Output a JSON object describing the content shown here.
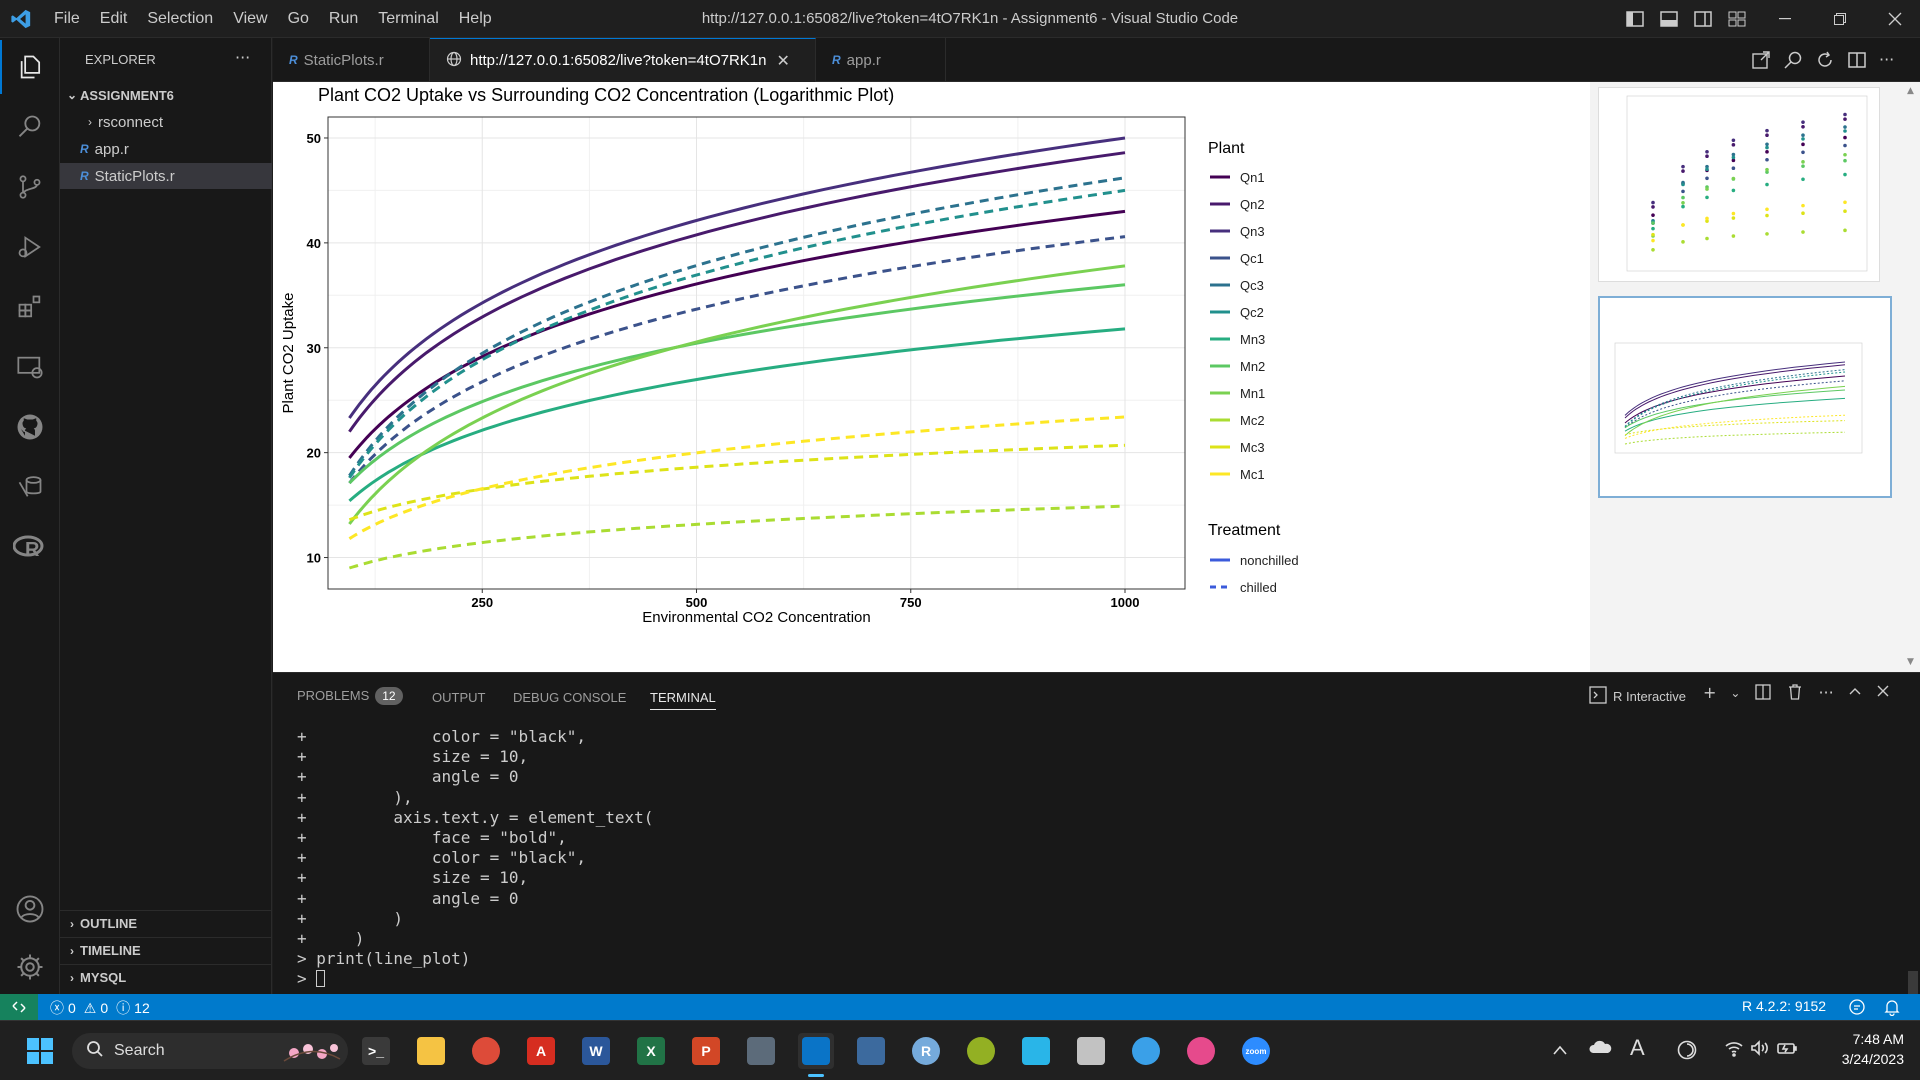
{
  "titlebar": {
    "menu": [
      "File",
      "Edit",
      "Selection",
      "View",
      "Go",
      "Run",
      "Terminal",
      "Help"
    ],
    "title": "http://127.0.0.1:65082/live?token=4tO7RK1n - Assignment6 - Visual Studio Code"
  },
  "activity": [
    "explorer-icon",
    "search-icon",
    "source-control-icon",
    "run-debug-icon",
    "extensions-icon",
    "remote-explorer-icon",
    "github-icon",
    "database-icon",
    "r-icon",
    "accounts-icon",
    "settings-gear-icon"
  ],
  "sidebar": {
    "header": "EXPLORER",
    "workspace": "ASSIGNMENT6",
    "items": [
      {
        "label": "rsconnect",
        "type": "folder"
      },
      {
        "label": "app.r",
        "type": "file"
      },
      {
        "label": "StaticPlots.r",
        "type": "file",
        "selected": true
      }
    ],
    "sections": [
      "OUTLINE",
      "TIMELINE",
      "MYSQL"
    ]
  },
  "tabs": [
    {
      "label": "StaticPlots.r",
      "active": false
    },
    {
      "label": "http://127.0.0.1:65082/live?token=4tO7RK1n",
      "active": true
    },
    {
      "label": "app.r",
      "active": false
    }
  ],
  "chart_data": {
    "type": "line",
    "title": "Plant CO2 Uptake vs Surrounding CO2 Concentration (Logarithmic Plot)",
    "xlabel": "Environmental CO2 Concentration",
    "ylabel": "Plant CO2 Uptake",
    "xlim": [
      70,
      1070
    ],
    "ylim": [
      7,
      52
    ],
    "xticks": [
      250,
      500,
      750,
      1000
    ],
    "yticks": [
      10,
      20,
      30,
      40,
      50
    ],
    "grid": true,
    "x": [
      95,
      1000
    ],
    "legend_plant_title": "Plant",
    "legend_treatment_title": "Treatment",
    "treatments": [
      {
        "name": "nonchilled",
        "dash": false
      },
      {
        "name": "chilled",
        "dash": true
      }
    ],
    "series": [
      {
        "name": "Qn1",
        "color": "#440154",
        "treatment": "nonchilled",
        "values": [
          19.5,
          43.0
        ]
      },
      {
        "name": "Qn2",
        "color": "#481a6c",
        "treatment": "nonchilled",
        "values": [
          22.0,
          48.6
        ]
      },
      {
        "name": "Qn3",
        "color": "#472f7d",
        "treatment": "nonchilled",
        "values": [
          23.3,
          50.0
        ]
      },
      {
        "name": "Qc1",
        "color": "#3b528b",
        "treatment": "chilled",
        "values": [
          17.1,
          40.6
        ]
      },
      {
        "name": "Qc3",
        "color": "#2c728e",
        "treatment": "chilled",
        "values": [
          17.8,
          46.2
        ]
      },
      {
        "name": "Qc2",
        "color": "#21908d",
        "treatment": "chilled",
        "values": [
          17.6,
          45.0
        ]
      },
      {
        "name": "Mn3",
        "color": "#27ad81",
        "treatment": "nonchilled",
        "values": [
          15.4,
          31.8
        ]
      },
      {
        "name": "Mn2",
        "color": "#5cc863",
        "treatment": "nonchilled",
        "values": [
          17.1,
          36.0
        ]
      },
      {
        "name": "Mn1",
        "color": "#7ad151",
        "treatment": "nonchilled",
        "values": [
          13.2,
          37.8
        ]
      },
      {
        "name": "Mc2",
        "color": "#aadc32",
        "treatment": "chilled",
        "values": [
          9.0,
          14.9
        ]
      },
      {
        "name": "Mc3",
        "color": "#dde318",
        "treatment": "chilled",
        "values": [
          13.6,
          20.7
        ]
      },
      {
        "name": "Mc1",
        "color": "#fde725",
        "treatment": "chilled",
        "values": [
          11.8,
          23.4
        ]
      }
    ]
  },
  "panel": {
    "tabs": [
      "PROBLEMS",
      "OUTPUT",
      "DEBUG CONSOLE",
      "TERMINAL"
    ],
    "problems_count": "12",
    "terminal_name": "R Interactive",
    "terminal_lines": [
      "+             color = \"black\",",
      "+             size = 10,",
      "+             angle = 0",
      "+         ),",
      "+         axis.text.y = element_text(",
      "+             face = \"bold\",",
      "+             color = \"black\",",
      "+             size = 10,",
      "+             angle = 0",
      "+         )",
      "+     )",
      "> print(line_plot)",
      "> "
    ]
  },
  "status": {
    "errors": "0",
    "warnings": "0",
    "info": "12",
    "r_version": "R 4.2.2: 9152"
  },
  "taskbar": {
    "search": "Search",
    "time": "7:48 AM",
    "date": "3/24/2023",
    "apps": [
      "terminal-icon",
      "file-explorer-icon",
      "chrome-icon",
      "acrobat-icon",
      "word-icon",
      "excel-icon",
      "powerpoint-icon",
      "calculator-icon",
      "vscode-icon",
      "app-icon",
      "rstudio-icon",
      "qgis-icon",
      "snowflake-icon",
      "snipping-tool-icon",
      "paint-icon",
      "drop-icon",
      "zoom-icon"
    ]
  }
}
